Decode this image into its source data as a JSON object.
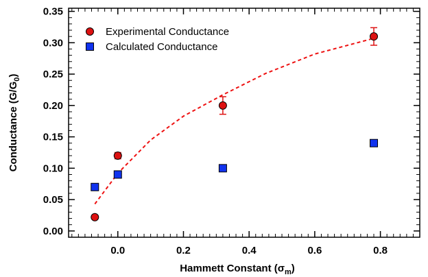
{
  "chart_data": {
    "type": "scatter",
    "xlabel": "Hammett Constant (σm)",
    "ylabel": "Conductance (G/G0)",
    "xlim": [
      -0.15,
      0.92
    ],
    "ylim": [
      -0.01,
      0.355
    ],
    "xticks": [
      0.0,
      0.2,
      0.4,
      0.6,
      0.8
    ],
    "xtick_labels": [
      "0.0",
      "0.2",
      "0.4",
      "0.6",
      "0.8"
    ],
    "yticks": [
      0.0,
      0.05,
      0.1,
      0.15,
      0.2,
      0.25,
      0.3,
      0.35
    ],
    "ytick_labels": [
      "0.00",
      "0.05",
      "0.10",
      "0.15",
      "0.20",
      "0.25",
      "0.30",
      "0.35"
    ],
    "grid": false,
    "legend_position": "top-left",
    "series": [
      {
        "name": "Experimental Conductance",
        "marker": "circle",
        "color": "#dd1111",
        "x": [
          -0.07,
          0.0,
          0.32,
          0.78
        ],
        "y": [
          0.022,
          0.12,
          0.2,
          0.31
        ],
        "yerr": [
          0.0,
          0.005,
          0.014,
          0.014
        ]
      },
      {
        "name": "Calculated Conductance",
        "marker": "square",
        "color": "#1133ee",
        "x": [
          -0.07,
          0.0,
          0.32,
          0.78
        ],
        "y": [
          0.07,
          0.09,
          0.1,
          0.14
        ],
        "yerr": []
      }
    ],
    "fit_line": {
      "style": "dashed",
      "color": "#ee1111",
      "x": [
        -0.07,
        0.0,
        0.1,
        0.2,
        0.32,
        0.45,
        0.6,
        0.78
      ],
      "y": [
        0.043,
        0.092,
        0.145,
        0.183,
        0.217,
        0.251,
        0.282,
        0.307
      ]
    }
  }
}
